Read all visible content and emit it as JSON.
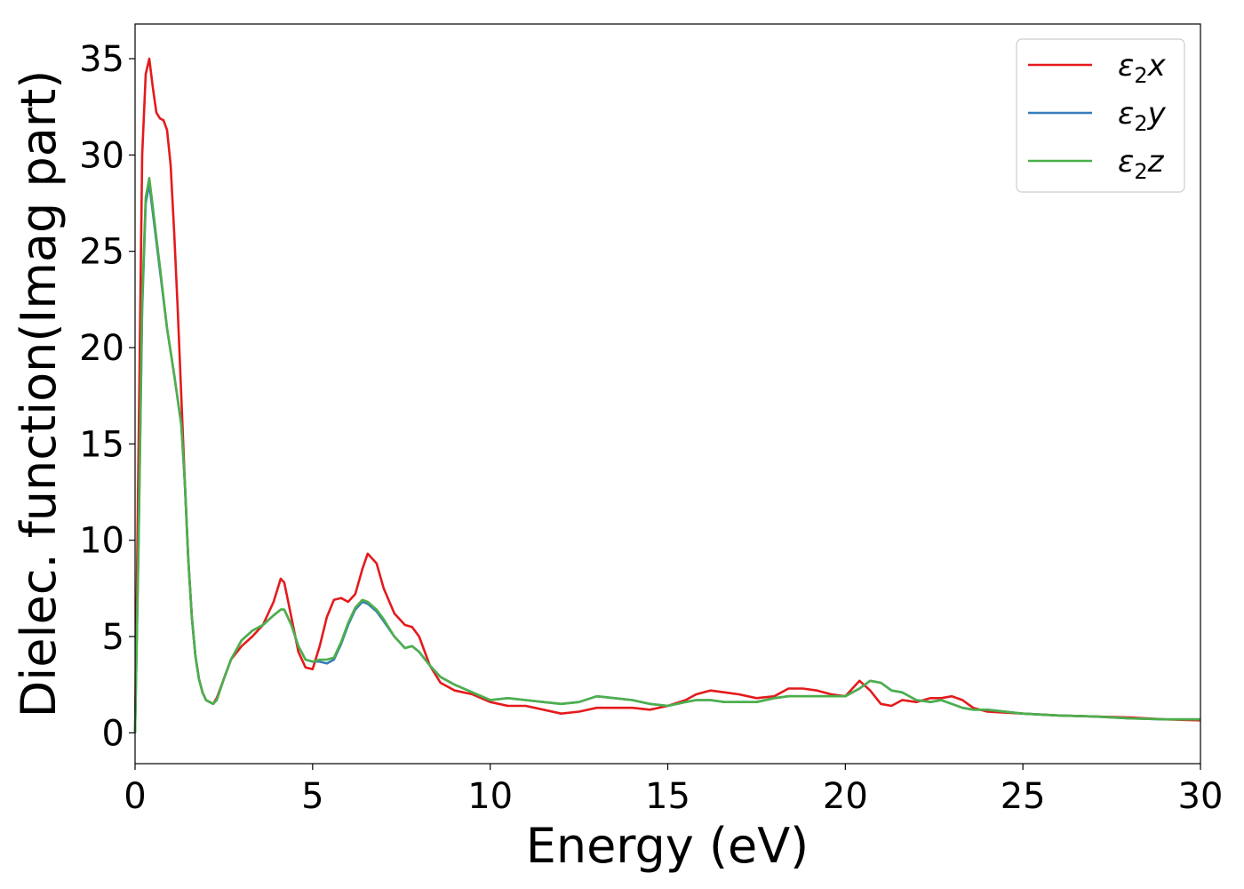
{
  "chart_data": {
    "type": "line",
    "title": "",
    "xlabel": "Energy (eV)",
    "ylabel": "Dielec. function(Imag part)",
    "xlim": [
      0,
      30
    ],
    "ylim": [
      -1.6,
      36.8
    ],
    "xticks": [
      0,
      5,
      10,
      15,
      20,
      25,
      30
    ],
    "yticks": [
      0,
      5,
      10,
      15,
      20,
      25,
      30,
      35
    ],
    "grid": false,
    "legend_position": "top-right",
    "series": [
      {
        "name": "ε₂x",
        "legend_base": "ε",
        "legend_sub": "2",
        "legend_var": "x",
        "color": "#e41a1c",
        "x": [
          0,
          0.1,
          0.2,
          0.3,
          0.4,
          0.5,
          0.6,
          0.7,
          0.8,
          0.9,
          1.0,
          1.1,
          1.2,
          1.3,
          1.4,
          1.5,
          1.6,
          1.7,
          1.8,
          1.9,
          2.0,
          2.2,
          2.3,
          2.5,
          2.7,
          3.0,
          3.3,
          3.6,
          3.9,
          4.1,
          4.2,
          4.4,
          4.6,
          4.8,
          5.0,
          5.2,
          5.4,
          5.6,
          5.8,
          6.0,
          6.2,
          6.4,
          6.55,
          6.8,
          7.0,
          7.3,
          7.6,
          7.8,
          8.0,
          8.3,
          8.6,
          9.0,
          9.5,
          10.0,
          10.5,
          11.0,
          11.5,
          12.0,
          12.5,
          13.0,
          13.5,
          14.0,
          14.5,
          15.0,
          15.5,
          15.8,
          16.2,
          16.6,
          17.0,
          17.5,
          18.0,
          18.4,
          18.8,
          19.2,
          19.6,
          20.0,
          20.4,
          20.7,
          21.0,
          21.3,
          21.6,
          22.0,
          22.4,
          22.7,
          23.0,
          23.3,
          23.6,
          24.0,
          25.0,
          26.0,
          27.0,
          28.0,
          29.0,
          30.0
        ],
        "y": [
          0,
          15,
          30,
          34.2,
          35,
          33.5,
          32.2,
          31.9,
          31.8,
          31.3,
          29.5,
          26,
          22,
          17.5,
          13,
          9,
          6,
          4,
          2.8,
          2.1,
          1.7,
          1.5,
          1.8,
          2.8,
          3.8,
          4.5,
          5,
          5.6,
          6.8,
          8,
          7.8,
          6,
          4.2,
          3.4,
          3.3,
          4.5,
          6,
          6.9,
          7.0,
          6.8,
          7.2,
          8.5,
          9.3,
          8.8,
          7.5,
          6.2,
          5.6,
          5.5,
          5.0,
          3.5,
          2.6,
          2.2,
          2.0,
          1.6,
          1.4,
          1.4,
          1.2,
          1.0,
          1.1,
          1.3,
          1.3,
          1.3,
          1.2,
          1.4,
          1.7,
          2.0,
          2.2,
          2.1,
          2.0,
          1.8,
          1.9,
          2.3,
          2.3,
          2.2,
          2.0,
          1.9,
          2.7,
          2.2,
          1.5,
          1.4,
          1.7,
          1.6,
          1.8,
          1.8,
          1.9,
          1.7,
          1.3,
          1.1,
          1.0,
          0.9,
          0.85,
          0.8,
          0.7,
          0.65
        ]
      },
      {
        "name": "ε₂y",
        "legend_base": "ε",
        "legend_sub": "2",
        "legend_var": "y",
        "color": "#377eb8",
        "x": [
          0,
          0.1,
          0.2,
          0.3,
          0.4,
          0.5,
          0.6,
          0.7,
          0.8,
          0.9,
          1.0,
          1.1,
          1.2,
          1.3,
          1.4,
          1.5,
          1.6,
          1.7,
          1.8,
          1.9,
          2.0,
          2.2,
          2.3,
          2.5,
          2.7,
          3.0,
          3.3,
          3.6,
          3.9,
          4.1,
          4.2,
          4.4,
          4.6,
          4.8,
          5.0,
          5.2,
          5.4,
          5.6,
          5.8,
          6.0,
          6.2,
          6.4,
          6.55,
          6.8,
          7.0,
          7.3,
          7.6,
          7.8,
          8.0,
          8.3,
          8.6,
          9.0,
          9.5,
          10.0,
          10.5,
          11.0,
          11.5,
          12.0,
          12.5,
          13.0,
          13.5,
          14.0,
          14.5,
          15.0,
          15.5,
          15.8,
          16.2,
          16.6,
          17.0,
          17.5,
          18.0,
          18.4,
          18.8,
          19.2,
          19.6,
          20.0,
          20.4,
          20.7,
          21.0,
          21.3,
          21.6,
          22.0,
          22.4,
          22.7,
          23.0,
          23.3,
          23.6,
          24.0,
          25.0,
          26.0,
          27.0,
          28.0,
          29.0,
          30.0
        ],
        "y": [
          0,
          10,
          22,
          27.5,
          28.5,
          27,
          25.5,
          24,
          22.5,
          21,
          19.8,
          18.6,
          17.3,
          16,
          13,
          9,
          6,
          4,
          2.8,
          2.1,
          1.7,
          1.5,
          1.7,
          2.8,
          3.8,
          4.8,
          5.3,
          5.6,
          6.1,
          6.4,
          6.4,
          5.6,
          4.5,
          3.8,
          3.7,
          3.7,
          3.6,
          3.8,
          4.6,
          5.6,
          6.4,
          6.8,
          6.7,
          6.3,
          5.8,
          5.0,
          4.4,
          4.5,
          4.2,
          3.5,
          2.9,
          2.5,
          2.1,
          1.7,
          1.8,
          1.7,
          1.6,
          1.5,
          1.6,
          1.9,
          1.8,
          1.7,
          1.5,
          1.4,
          1.6,
          1.7,
          1.7,
          1.6,
          1.6,
          1.6,
          1.8,
          1.9,
          1.9,
          1.9,
          1.9,
          1.9,
          2.3,
          2.7,
          2.6,
          2.2,
          2.1,
          1.7,
          1.6,
          1.7,
          1.5,
          1.3,
          1.2,
          1.2,
          1.0,
          0.9,
          0.85,
          0.75,
          0.7,
          0.7
        ]
      },
      {
        "name": "ε₂z",
        "legend_base": "ε",
        "legend_sub": "2",
        "legend_var": "z",
        "color": "#4daf4a",
        "x": [
          0,
          0.1,
          0.2,
          0.3,
          0.4,
          0.5,
          0.6,
          0.7,
          0.8,
          0.9,
          1.0,
          1.1,
          1.2,
          1.3,
          1.4,
          1.5,
          1.6,
          1.7,
          1.8,
          1.9,
          2.0,
          2.2,
          2.3,
          2.5,
          2.7,
          3.0,
          3.3,
          3.6,
          3.9,
          4.1,
          4.2,
          4.4,
          4.6,
          4.8,
          5.0,
          5.2,
          5.4,
          5.6,
          5.8,
          6.0,
          6.2,
          6.4,
          6.55,
          6.8,
          7.0,
          7.3,
          7.6,
          7.8,
          8.0,
          8.3,
          8.6,
          9.0,
          9.5,
          10.0,
          10.5,
          11.0,
          11.5,
          12.0,
          12.5,
          13.0,
          13.5,
          14.0,
          14.5,
          15.0,
          15.5,
          15.8,
          16.2,
          16.6,
          17.0,
          17.5,
          18.0,
          18.4,
          18.8,
          19.2,
          19.6,
          20.0,
          20.4,
          20.7,
          21.0,
          21.3,
          21.6,
          22.0,
          22.4,
          22.7,
          23.0,
          23.3,
          23.6,
          24.0,
          25.0,
          26.0,
          27.0,
          28.0,
          29.0,
          30.0
        ],
        "y": [
          0,
          10,
          22.5,
          27.8,
          28.8,
          27.3,
          25.7,
          24.2,
          22.6,
          21,
          19.8,
          18.6,
          17.3,
          16,
          13,
          9,
          6,
          4,
          2.8,
          2.1,
          1.7,
          1.5,
          1.7,
          2.8,
          3.8,
          4.8,
          5.3,
          5.6,
          6.1,
          6.4,
          6.4,
          5.6,
          4.5,
          3.8,
          3.7,
          3.8,
          3.8,
          3.9,
          4.7,
          5.7,
          6.5,
          6.9,
          6.8,
          6.4,
          5.9,
          5.0,
          4.4,
          4.5,
          4.2,
          3.5,
          2.9,
          2.5,
          2.1,
          1.7,
          1.8,
          1.7,
          1.6,
          1.5,
          1.6,
          1.9,
          1.8,
          1.7,
          1.5,
          1.4,
          1.6,
          1.7,
          1.7,
          1.6,
          1.6,
          1.6,
          1.8,
          1.9,
          1.9,
          1.9,
          1.9,
          1.9,
          2.3,
          2.7,
          2.6,
          2.2,
          2.1,
          1.7,
          1.6,
          1.7,
          1.5,
          1.3,
          1.2,
          1.2,
          1.0,
          0.9,
          0.85,
          0.75,
          0.7,
          0.7
        ]
      }
    ]
  }
}
